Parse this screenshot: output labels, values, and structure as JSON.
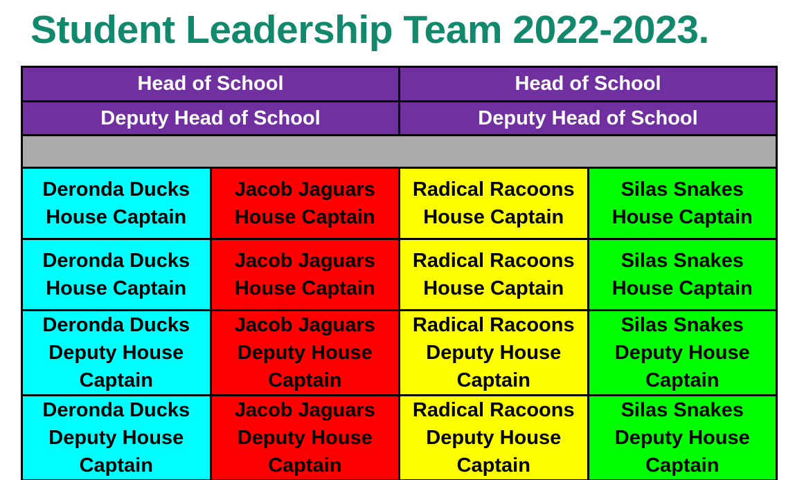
{
  "page": {
    "title": "Student Leadership Team 2022-2023.",
    "title_color": "#12896C",
    "background": "#FFFFFF"
  },
  "table": {
    "border_color": "#000000",
    "header": {
      "bg": "#7030A0",
      "text_color": "#FFFFFF",
      "rows": [
        [
          "Head of School",
          "Head of School"
        ],
        [
          "Deputy Head of School",
          "Deputy Head of School"
        ]
      ]
    },
    "spacer": {
      "bg": "#ACA9AA",
      "text": ""
    },
    "houses": [
      {
        "name": "Deronda Ducks",
        "bg": "#00FFFF"
      },
      {
        "name": "Jacob Jaguars",
        "bg": "#FF0000"
      },
      {
        "name": "Radical Racoons",
        "bg": "#FFFF00"
      },
      {
        "name": "Silas Snakes",
        "bg": "#00FF00"
      }
    ],
    "body_rows": [
      {
        "role": "House Captain"
      },
      {
        "role": "House Captain"
      },
      {
        "role": "Deputy House Captain"
      },
      {
        "role": "Deputy House Captain"
      }
    ],
    "text_color": "#000000"
  }
}
